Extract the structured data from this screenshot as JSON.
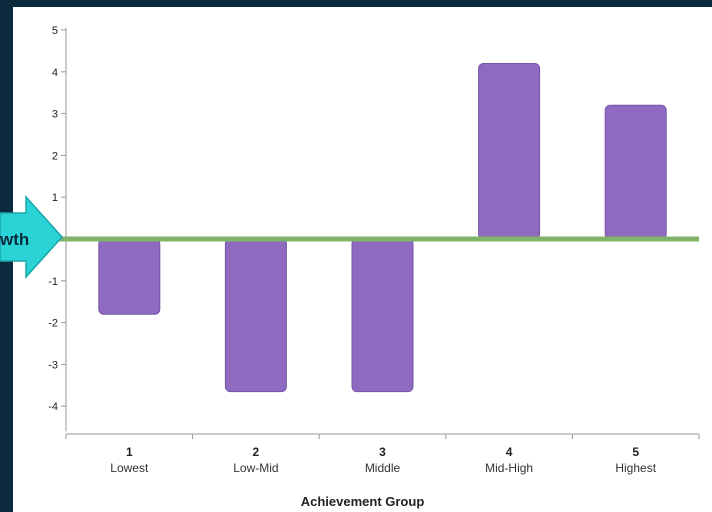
{
  "chart_data": {
    "type": "bar",
    "categories": [
      "1",
      "2",
      "3",
      "4",
      "5"
    ],
    "category_sublabels": [
      "Lowest",
      "Low-Mid",
      "Middle",
      "Mid-High",
      "Highest"
    ],
    "values": [
      -1.8,
      -3.65,
      -3.65,
      4.2,
      3.2
    ],
    "xlabel": "Achievement Group",
    "ylabel": "",
    "ylim": [
      -4.6,
      5
    ],
    "yticks": [
      5,
      4,
      3,
      2,
      1,
      -1,
      -2,
      -3,
      -4
    ],
    "bar_color": "#8e6ac1",
    "reference_line": {
      "value": 0,
      "color": "#7fb36a"
    },
    "grid": false,
    "callout": {
      "text": "wth",
      "color": "#2ad4d6"
    }
  }
}
